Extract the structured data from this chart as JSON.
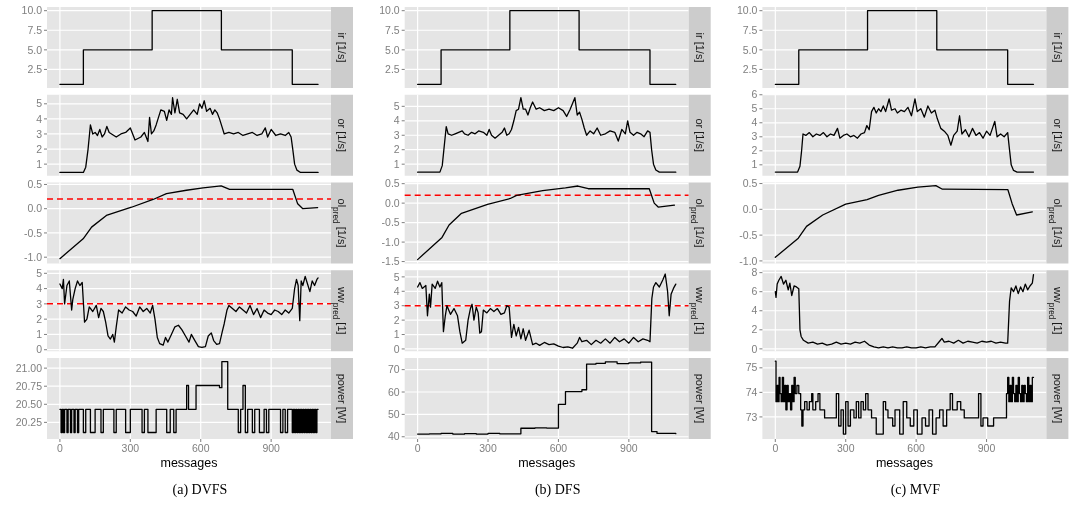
{
  "chart_data": [
    {
      "type": "step",
      "ylabel": "ir [1/s]",
      "color": "#000000",
      "grid": true,
      "tick_labels": "y",
      "xlim": [
        -55,
        1155
      ],
      "xticks": [
        0,
        300,
        600,
        900
      ],
      "ylim": [
        0.13,
        10.47
      ],
      "yticks": [
        2.5,
        {
          "value": 5,
          "label": "5.0"
        },
        7.5,
        {
          "value": 10,
          "label": "10.0"
        }
      ],
      "x": [
        0,
        100,
        393,
        688,
        990,
        1100
      ],
      "values": [
        0.6,
        5,
        10,
        5,
        0.6,
        0.6
      ]
    },
    {
      "type": "line",
      "ylabel": "or [1/s]",
      "color": "#000000",
      "grid": true,
      "tick_labels": "y",
      "xlim": [
        -55,
        1155
      ],
      "xticks": [
        0,
        300,
        600,
        900
      ],
      "ylim": [
        0.23,
        5.6
      ],
      "yticks": [
        1,
        2,
        3,
        4,
        5
      ],
      "x": [
        0,
        100,
        110,
        120,
        130,
        140,
        150,
        160,
        170,
        180,
        190,
        200,
        210,
        220,
        240,
        260,
        280,
        300,
        310,
        320,
        345,
        360,
        375,
        382,
        390,
        400,
        410,
        420,
        430,
        445,
        455,
        465,
        475,
        480,
        490,
        500,
        510,
        525,
        540,
        555,
        570,
        585,
        595,
        605,
        615,
        625,
        640,
        650,
        660,
        670,
        680,
        690,
        700,
        720,
        740,
        760,
        780,
        800,
        820,
        840,
        860,
        875,
        885,
        900,
        920,
        940,
        960,
        975,
        985,
        992,
        1000,
        1010,
        1025,
        1100
      ],
      "values": [
        0.45,
        0.45,
        0.8,
        2.0,
        3.6,
        3.0,
        3.1,
        2.9,
        3.3,
        2.8,
        3.0,
        3.5,
        3.1,
        3.0,
        2.8,
        3.0,
        3.1,
        3.4,
        3.0,
        2.6,
        2.8,
        3.1,
        2.5,
        4.1,
        3.0,
        3.2,
        3.6,
        4.1,
        4.6,
        4.5,
        3.9,
        4.6,
        4.3,
        5.4,
        4.4,
        5.3,
        4.4,
        4.3,
        4.0,
        4.3,
        4.6,
        4.3,
        5.0,
        4.7,
        5.2,
        4.5,
        4.7,
        4.3,
        4.6,
        4.4,
        4.0,
        3.5,
        3.0,
        3.1,
        3.0,
        3.1,
        2.9,
        3.0,
        3.1,
        2.9,
        3.0,
        3.4,
        2.8,
        3.3,
        2.9,
        3.0,
        2.9,
        3.1,
        2.8,
        2.0,
        1.0,
        0.6,
        0.45,
        0.45
      ]
    },
    {
      "type": "line",
      "ylabel": "ol$_{pred}$ [1/s]",
      "color": "#000000",
      "grid": true,
      "tick_labels": "y",
      "xlim": [
        -55,
        1155
      ],
      "xticks": [
        0,
        300,
        600,
        900
      ],
      "ylim": [
        -1.13,
        0.54
      ],
      "yticks": [
        {
          "value": -1,
          "label": "-1.0"
        },
        {
          "value": -0.5,
          "label": "-0.5"
        },
        {
          "value": 0,
          "label": "0.0"
        },
        0.5
      ],
      "ref_lines": [
        {
          "axis": "y",
          "value": 0.2,
          "color": "#ff0000",
          "line_style": "dashed"
        }
      ],
      "x": [
        0,
        99,
        135,
        198,
        305,
        397,
        454,
        539,
        610,
        687,
        723,
        992,
        1013,
        1035,
        1098
      ],
      "values": [
        -1.03,
        -0.62,
        -0.38,
        -0.14,
        0.03,
        0.19,
        0.31,
        0.38,
        0.43,
        0.47,
        0.4,
        0.4,
        0.1,
        0.0,
        0.02
      ]
    },
    {
      "type": "line",
      "ylabel": "ww$_{pred}$ [1]",
      "color": "#000000",
      "grid": true,
      "tick_labels": "y",
      "xlim": [
        -55,
        1155
      ],
      "xticks": [
        0,
        300,
        600,
        900
      ],
      "ylim": [
        -0.1,
        5.2
      ],
      "yticks": [
        0,
        1,
        2,
        3,
        4,
        5
      ],
      "ref_lines": [
        {
          "axis": "y",
          "value": 3,
          "color": "#ff0000",
          "line_style": "dashed"
        }
      ],
      "x": [
        0,
        10,
        15,
        20,
        30,
        40,
        50,
        55,
        65,
        75,
        85,
        95,
        105,
        115,
        125,
        140,
        155,
        165,
        175,
        185,
        195,
        205,
        215,
        225,
        232,
        240,
        250,
        265,
        280,
        295,
        310,
        325,
        340,
        355,
        370,
        385,
        395,
        405,
        415,
        425,
        440,
        450,
        460,
        475,
        490,
        505,
        520,
        535,
        550,
        560,
        575,
        590,
        605,
        620,
        632,
        645,
        655,
        668,
        680,
        692,
        700,
        712,
        720,
        735,
        750,
        765,
        780,
        795,
        810,
        825,
        840,
        855,
        870,
        885,
        900,
        915,
        930,
        945,
        960,
        975,
        990,
        1000,
        1008,
        1015,
        1022,
        1028,
        1035,
        1045,
        1055,
        1065,
        1075,
        1085,
        1095,
        1100
      ],
      "values": [
        4.3,
        4.0,
        4.6,
        3.0,
        4.2,
        4.5,
        2.6,
        3.3,
        4.0,
        4.5,
        4.2,
        4.4,
        1.8,
        2.0,
        2.8,
        2.5,
        2.9,
        2.1,
        2.7,
        2.5,
        1.8,
        0.9,
        0.7,
        1.0,
        0.5,
        1.5,
        2.6,
        2.4,
        2.8,
        2.6,
        2.5,
        2.2,
        2.8,
        2.5,
        2.7,
        2.4,
        2.9,
        2.0,
        0.8,
        0.4,
        0.3,
        0.8,
        0.5,
        1.0,
        1.5,
        1.6,
        1.3,
        0.9,
        0.5,
        1.0,
        0.6,
        0.2,
        0.15,
        0.2,
        0.9,
        1.1,
        0.6,
        0.35,
        0.4,
        1.2,
        1.7,
        2.6,
        2.9,
        2.7,
        2.5,
        2.8,
        2.6,
        2.4,
        2.9,
        2.3,
        2.7,
        2.1,
        2.6,
        2.4,
        2.3,
        2.6,
        2.5,
        2.3,
        2.6,
        2.4,
        2.7,
        4.0,
        4.6,
        4.2,
        1.9,
        4.5,
        4.2,
        4.8,
        4.3,
        3.8,
        4.5,
        4.2,
        4.6,
        4.7
      ]
    },
    {
      "type": "step",
      "ylabel": "power [W]",
      "xlabel": "messages",
      "annotations": [
        "(a) DVFS"
      ],
      "color": "#000000",
      "grid": true,
      "xlim": [
        -55,
        1155
      ],
      "xticks": [
        0,
        300,
        600,
        900
      ],
      "ylim": [
        20.02,
        21.14
      ],
      "yticks": [
        20.25,
        {
          "value": 20.5,
          "label": "20.50"
        },
        20.75,
        {
          "value": 21,
          "label": "21.00"
        }
      ],
      "x": [
        0,
        5,
        10,
        15,
        20,
        30,
        35,
        45,
        50,
        60,
        65,
        75,
        80,
        100,
        110,
        130,
        150,
        175,
        185,
        230,
        240,
        280,
        300,
        350,
        360,
        375,
        410,
        455,
        470,
        485,
        495,
        540,
        548,
        580,
        680,
        690,
        715,
        760,
        770,
        780,
        790,
        800,
        820,
        830,
        850,
        870,
        880,
        890,
        940,
        950,
        960,
        970,
        990,
        995,
        1000,
        1005,
        1010,
        1015,
        1020,
        1025,
        1030,
        1035,
        1040,
        1045,
        1050,
        1055,
        1060,
        1065,
        1070,
        1075,
        1080,
        1085,
        1090,
        1095,
        1100
      ],
      "values": [
        20.43,
        20.11,
        20.43,
        20.11,
        20.43,
        20.11,
        20.43,
        20.11,
        20.43,
        20.11,
        20.43,
        20.11,
        20.43,
        20.11,
        20.43,
        20.11,
        20.43,
        20.11,
        20.43,
        20.11,
        20.43,
        20.11,
        20.43,
        20.11,
        20.43,
        20.11,
        20.43,
        20.11,
        20.43,
        20.11,
        20.43,
        20.76,
        20.43,
        20.76,
        20.73,
        21.09,
        20.43,
        20.11,
        20.43,
        20.76,
        20.11,
        20.43,
        20.11,
        20.43,
        20.11,
        20.43,
        20.11,
        20.43,
        20.11,
        20.43,
        20.11,
        20.43,
        20.11,
        20.43,
        20.11,
        20.43,
        20.11,
        20.43,
        20.11,
        20.43,
        20.11,
        20.43,
        20.11,
        20.43,
        20.11,
        20.43,
        20.11,
        20.43,
        20.11,
        20.43,
        20.11,
        20.43,
        20.11,
        20.43,
        20.43
      ]
    },
    {
      "type": "step",
      "ylabel": "ir [1/s]",
      "color": "#000000",
      "grid": true,
      "tick_labels": "y",
      "xlim": [
        -55,
        1155
      ],
      "xticks": [
        0,
        300,
        600,
        900
      ],
      "ylim": [
        0.13,
        10.47
      ],
      "yticks": [
        2.5,
        {
          "value": 5,
          "label": "5.0"
        },
        7.5,
        {
          "value": 10,
          "label": "10.0"
        }
      ],
      "x": [
        0,
        100,
        393,
        688,
        990,
        1100
      ],
      "values": [
        0.6,
        5,
        10,
        5,
        0.6,
        0.6
      ]
    },
    {
      "type": "line",
      "ylabel": "or [1/s]",
      "color": "#000000",
      "grid": true,
      "tick_labels": "y",
      "xlim": [
        -55,
        1155
      ],
      "xticks": [
        0,
        300,
        600,
        900
      ],
      "ylim": [
        0.2,
        5.8
      ],
      "yticks": [
        1,
        2,
        3,
        4,
        5
      ],
      "x": [
        0,
        95,
        105,
        115,
        122,
        130,
        145,
        160,
        175,
        190,
        200,
        215,
        230,
        245,
        260,
        280,
        295,
        305,
        315,
        330,
        345,
        360,
        370,
        380,
        390,
        400,
        410,
        420,
        430,
        440,
        450,
        460,
        470,
        480,
        490,
        505,
        520,
        540,
        560,
        580,
        600,
        620,
        635,
        650,
        670,
        680,
        690,
        700,
        710,
        720,
        735,
        750,
        765,
        780,
        800,
        820,
        840,
        855,
        870,
        885,
        895,
        905,
        920,
        935,
        950,
        965,
        980,
        990,
        997,
        1005,
        1015,
        1030,
        1100
      ],
      "values": [
        0.45,
        0.45,
        0.9,
        2.5,
        3.6,
        3.1,
        3.0,
        3.1,
        3.2,
        3.3,
        3.1,
        3.0,
        3.2,
        3.1,
        3.3,
        3.2,
        3.0,
        3.4,
        3.0,
        2.8,
        3.0,
        3.2,
        3.5,
        3.0,
        3.1,
        3.4,
        4.0,
        4.7,
        4.8,
        5.6,
        4.8,
        4.8,
        4.4,
        4.9,
        5.3,
        4.8,
        4.9,
        4.7,
        4.8,
        4.7,
        4.9,
        4.7,
        4.3,
        4.8,
        5.6,
        4.4,
        4.6,
        4.1,
        3.5,
        3.0,
        3.3,
        3.1,
        3.5,
        3.0,
        3.1,
        3.3,
        3.2,
        2.6,
        3.4,
        3.1,
        4.0,
        3.2,
        3.0,
        3.2,
        3.1,
        2.9,
        3.3,
        3.2,
        2.0,
        1.0,
        0.6,
        0.45,
        0.45
      ]
    },
    {
      "type": "line",
      "ylabel": "ol$_{pred}$ [1/s]",
      "color": "#000000",
      "grid": true,
      "tick_labels": "y",
      "xlim": [
        -55,
        1155
      ],
      "xticks": [
        0,
        300,
        600,
        900
      ],
      "ylim": [
        -1.55,
        0.53
      ],
      "yticks": [
        {
          "value": -1.5,
          "label": "-1.5"
        },
        {
          "value": -1,
          "label": "-1.0"
        },
        {
          "value": -0.5,
          "label": "-0.5"
        },
        {
          "value": 0,
          "label": "0.0"
        },
        0.5
      ],
      "ref_lines": [
        {
          "axis": "y",
          "value": 0.2,
          "color": "#ff0000",
          "line_style": "dashed"
        }
      ],
      "x": [
        0,
        104,
        134,
        187,
        298,
        395,
        422,
        533,
        630,
        683,
        727,
        987,
        1008,
        1025,
        1094
      ],
      "values": [
        -1.45,
        -0.88,
        -0.56,
        -0.26,
        -0.03,
        0.12,
        0.2,
        0.32,
        0.39,
        0.44,
        0.37,
        0.37,
        0,
        -0.1,
        -0.05
      ]
    },
    {
      "type": "line",
      "ylabel": "ww$_{pred}$ [1]",
      "color": "#000000",
      "grid": true,
      "tick_labels": "y",
      "xlim": [
        -55,
        1155
      ],
      "xticks": [
        0,
        300,
        600,
        900
      ],
      "ylim": [
        -0.16,
        5.46
      ],
      "yticks": [
        0,
        1,
        2,
        3,
        4,
        5
      ],
      "ref_lines": [
        {
          "axis": "y",
          "value": 3,
          "color": "#ff0000",
          "line_style": "dashed"
        }
      ],
      "x": [
        0,
        10,
        20,
        35,
        42,
        50,
        55,
        62,
        75,
        85,
        95,
        103,
        110,
        118,
        125,
        140,
        155,
        170,
        180,
        190,
        205,
        215,
        225,
        232,
        240,
        250,
        258,
        265,
        272,
        280,
        295,
        310,
        325,
        340,
        355,
        370,
        380,
        390,
        400,
        410,
        420,
        430,
        440,
        450,
        460,
        475,
        490,
        505,
        520,
        540,
        560,
        580,
        600,
        620,
        640,
        660,
        680,
        690,
        700,
        720,
        740,
        760,
        780,
        800,
        820,
        840,
        860,
        880,
        900,
        920,
        940,
        960,
        980,
        990,
        998,
        1005,
        1015,
        1030,
        1045,
        1055,
        1065,
        1072,
        1080,
        1090,
        1100
      ],
      "values": [
        4.3,
        4.6,
        4.2,
        4.4,
        2.3,
        3.8,
        2.9,
        4.5,
        4.2,
        4.7,
        4.3,
        4.6,
        1.2,
        2.3,
        3.0,
        2.4,
        2.8,
        2.3,
        1.2,
        0.4,
        0.6,
        2.0,
        2.8,
        3.1,
        2.0,
        2.9,
        2.5,
        1.1,
        1.2,
        2.7,
        2.5,
        2.8,
        2.6,
        2.8,
        2.4,
        2.5,
        3.0,
        2.9,
        0.8,
        1.7,
        0.9,
        1.5,
        0.7,
        1.4,
        0.6,
        1.3,
        0.3,
        0.4,
        0.25,
        0.45,
        0.3,
        0.35,
        0.2,
        0.1,
        0.15,
        0.05,
        0.4,
        0.8,
        0.5,
        0.6,
        0.3,
        0.6,
        0.4,
        0.7,
        0.4,
        0.8,
        0.5,
        0.7,
        0.4,
        0.8,
        0.5,
        0.7,
        0.6,
        0.5,
        3.5,
        4.3,
        4.6,
        4.3,
        4.8,
        5.2,
        4.0,
        2.3,
        3.8,
        4.2,
        4.5
      ]
    },
    {
      "type": "step",
      "ylabel": "power [W]",
      "xlabel": "messages",
      "annotations": [
        "(b) DFS"
      ],
      "color": "#000000",
      "grid": true,
      "xlim": [
        -55,
        1155
      ],
      "xticks": [
        0,
        300,
        600,
        900
      ],
      "ylim": [
        39,
        75.2
      ],
      "yticks": [
        40,
        50,
        60,
        70
      ],
      "x": [
        0,
        50,
        100,
        150,
        200,
        250,
        300,
        350,
        440,
        500,
        550,
        600,
        630,
        700,
        720,
        760,
        800,
        850,
        900,
        950,
        997,
        1020,
        1100
      ],
      "values": [
        41.2,
        41.3,
        41.5,
        41.2,
        41.4,
        41.2,
        41.5,
        41.3,
        43.8,
        44.0,
        43.9,
        54.5,
        60.2,
        61.0,
        72.5,
        72.8,
        73.5,
        72.7,
        73.0,
        73.4,
        42.3,
        41.5,
        41.4
      ]
    },
    {
      "type": "step",
      "ylabel": "ir [1/s]",
      "color": "#000000",
      "grid": true,
      "tick_labels": "y",
      "xlim": [
        -55,
        1155
      ],
      "xticks": [
        0,
        300,
        600,
        900
      ],
      "ylim": [
        0.13,
        10.47
      ],
      "yticks": [
        2.5,
        {
          "value": 5,
          "label": "5.0"
        },
        7.5,
        {
          "value": 10,
          "label": "10.0"
        }
      ],
      "x": [
        0,
        100,
        393,
        688,
        990,
        1100
      ],
      "values": [
        0.6,
        5,
        10,
        5,
        0.6,
        0.6
      ]
    },
    {
      "type": "line",
      "ylabel": "or [1/s]",
      "color": "#000000",
      "grid": true,
      "tick_labels": "y",
      "xlim": [
        -55,
        1155
      ],
      "xticks": [
        0,
        300,
        600,
        900
      ],
      "ylim": [
        0.22,
        6.0
      ],
      "yticks": [
        1,
        2,
        3,
        4,
        5,
        6
      ],
      "x": [
        0,
        95,
        105,
        112,
        118,
        130,
        145,
        160,
        175,
        190,
        205,
        220,
        235,
        250,
        265,
        275,
        290,
        305,
        320,
        335,
        350,
        365,
        380,
        390,
        400,
        410,
        420,
        430,
        440,
        450,
        460,
        470,
        485,
        495,
        510,
        520,
        535,
        550,
        565,
        580,
        595,
        605,
        620,
        635,
        650,
        665,
        680,
        690,
        705,
        720,
        735,
        748,
        760,
        775,
        785,
        795,
        810,
        825,
        840,
        855,
        870,
        885,
        900,
        915,
        935,
        945,
        960,
        975,
        990,
        997,
        1005,
        1015,
        1030,
        1100
      ],
      "values": [
        0.48,
        0.48,
        0.9,
        2.0,
        3.2,
        3.1,
        3.3,
        3.0,
        3.2,
        3.1,
        3.3,
        3.0,
        3.2,
        3.1,
        3.6,
        2.9,
        3.1,
        3.2,
        3.0,
        3.1,
        2.9,
        3.2,
        3.3,
        3.8,
        3.5,
        4.8,
        5.1,
        4.7,
        5.0,
        4.8,
        5.2,
        4.8,
        5.7,
        4.9,
        5.0,
        4.7,
        4.9,
        4.8,
        5.1,
        4.5,
        5.7,
        4.8,
        5.0,
        4.4,
        5.2,
        4.7,
        4.9,
        4.3,
        3.6,
        3.4,
        3.1,
        2.4,
        3.1,
        3.4,
        4.5,
        3.2,
        3.5,
        3.0,
        3.6,
        3.1,
        3.3,
        2.9,
        3.4,
        3.1,
        4.1,
        3.0,
        3.2,
        3.0,
        3.3,
        2.2,
        1.0,
        0.6,
        0.48,
        0.48
      ]
    },
    {
      "type": "line",
      "ylabel": "ol$_{pred}$ [1/s]",
      "color": "#000000",
      "grid": true,
      "tick_labels": "y",
      "xlim": [
        -55,
        1155
      ],
      "xticks": [
        0,
        300,
        600,
        900
      ],
      "ylim": [
        -1.05,
        0.52
      ],
      "yticks": [
        {
          "value": -1,
          "label": "-1.0"
        },
        {
          "value": -0.5,
          "label": "-0.5"
        },
        {
          "value": 0,
          "label": "0.0"
        },
        0.5
      ],
      "x": [
        0,
        98,
        133,
        202,
        300,
        391,
        440,
        523,
        607,
        684,
        712,
        991,
        1009,
        1028,
        1095
      ],
      "values": [
        -0.93,
        -0.56,
        -0.33,
        -0.11,
        0.1,
        0.19,
        0.27,
        0.37,
        0.43,
        0.46,
        0.39,
        0.38,
        0.11,
        -0.11,
        -0.05
      ]
    },
    {
      "type": "line",
      "ylabel": "ww$_{pred}$ [1]",
      "color": "#000000",
      "grid": true,
      "tick_labels": "y",
      "xlim": [
        -55,
        1155
      ],
      "xticks": [
        0,
        300,
        600,
        900
      ],
      "ylim": [
        -0.25,
        8.25
      ],
      "yticks": [
        0,
        2,
        4,
        6,
        8
      ],
      "x": [
        0,
        3,
        8,
        15,
        25,
        35,
        45,
        55,
        62,
        70,
        80,
        90,
        100,
        105,
        110,
        120,
        140,
        160,
        180,
        200,
        220,
        240,
        260,
        280,
        300,
        320,
        340,
        360,
        380,
        400,
        420,
        440,
        460,
        480,
        500,
        520,
        540,
        560,
        580,
        600,
        620,
        640,
        660,
        680,
        700,
        710,
        720,
        740,
        760,
        780,
        800,
        820,
        840,
        860,
        880,
        900,
        920,
        940,
        960,
        980,
        990,
        998,
        1005,
        1015,
        1025,
        1035,
        1045,
        1055,
        1065,
        1075,
        1085,
        1095,
        1100
      ],
      "values": [
        6.0,
        5.4,
        6.8,
        7.2,
        7.6,
        6.8,
        7.2,
        6.2,
        6.9,
        5.6,
        6.6,
        6.5,
        6.3,
        2.0,
        1.3,
        0.9,
        0.6,
        0.7,
        0.5,
        0.6,
        0.4,
        0.5,
        0.7,
        0.5,
        0.6,
        0.5,
        0.7,
        0.6,
        0.8,
        0.4,
        0.2,
        0.1,
        0.2,
        0.1,
        0.2,
        0.1,
        0.1,
        0.2,
        0.1,
        0.1,
        0.2,
        0.1,
        0.2,
        0.2,
        0.8,
        1.1,
        0.7,
        0.8,
        0.6,
        0.9,
        0.6,
        0.8,
        0.7,
        0.6,
        0.8,
        0.7,
        0.8,
        0.6,
        0.7,
        0.6,
        0.6,
        5.0,
        6.4,
        6.0,
        6.6,
        5.8,
        6.5,
        6.0,
        6.8,
        6.2,
        6.6,
        6.9,
        7.8
      ]
    },
    {
      "type": "step",
      "ylabel": "power [W]",
      "xlabel": "messages",
      "annotations": [
        "(c) MVF"
      ],
      "color": "#000000",
      "grid": true,
      "xlim": [
        -55,
        1155
      ],
      "xticks": [
        0,
        300,
        600,
        900
      ],
      "ylim": [
        72.1,
        75.4
      ],
      "yticks": [
        73,
        74,
        75
      ],
      "x": [
        0,
        3,
        8,
        12,
        16,
        20,
        25,
        30,
        35,
        40,
        45,
        50,
        55,
        60,
        65,
        70,
        75,
        80,
        85,
        92,
        100,
        108,
        113,
        118,
        125,
        135,
        145,
        155,
        160,
        172,
        182,
        190,
        210,
        260,
        270,
        280,
        290,
        300,
        310,
        320,
        335,
        345,
        355,
        365,
        375,
        385,
        395,
        410,
        430,
        460,
        470,
        480,
        500,
        510,
        530,
        545,
        560,
        575,
        590,
        605,
        625,
        640,
        655,
        670,
        685,
        700,
        715,
        730,
        745,
        755,
        775,
        790,
        805,
        845,
        866,
        876,
        885,
        905,
        930,
        985,
        990,
        995,
        1000,
        1005,
        1010,
        1015,
        1020,
        1025,
        1030,
        1035,
        1040,
        1045,
        1050,
        1055,
        1060,
        1065,
        1070,
        1075,
        1080,
        1085,
        1090,
        1095,
        1100
      ],
      "values": [
        75.27,
        73.62,
        74.28,
        73.62,
        74.61,
        73.95,
        73.62,
        74.61,
        73.62,
        74.28,
        73.29,
        74.28,
        73.62,
        73.95,
        73.29,
        74.28,
        73.62,
        74.61,
        73.95,
        74.28,
        73.95,
        73.29,
        72.63,
        73.29,
        73.62,
        73.29,
        73.62,
        73.95,
        73.29,
        73.62,
        73.95,
        73.29,
        72.96,
        73.95,
        72.63,
        73.29,
        72.3,
        73.62,
        72.63,
        73.29,
        72.96,
        73.62,
        72.96,
        73.62,
        73.29,
        73.95,
        73.29,
        72.96,
        72.3,
        73.62,
        73.29,
        72.96,
        72.63,
        73.29,
        72.3,
        73.62,
        72.96,
        72.63,
        73.29,
        72.3,
        72.96,
        72.63,
        73.29,
        72.3,
        72.96,
        73.29,
        72.63,
        73.29,
        73.95,
        73.29,
        73.62,
        73.29,
        72.96,
        72.96,
        73.95,
        72.63,
        72.96,
        72.63,
        72.96,
        73.95,
        74.61,
        73.62,
        74.28,
        73.62,
        74.61,
        73.95,
        73.62,
        74.28,
        73.62,
        74.61,
        73.95,
        73.62,
        74.28,
        73.62,
        74.28,
        73.95,
        73.62,
        74.61,
        73.62,
        74.28,
        73.62,
        74.61,
        74.61
      ]
    }
  ]
}
